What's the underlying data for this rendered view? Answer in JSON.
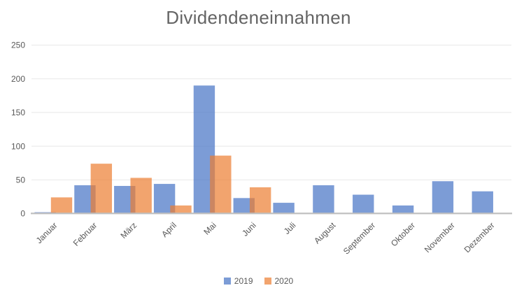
{
  "chart_data": {
    "type": "bar",
    "title": "Dividendeneinnahmen",
    "categories": [
      "Januar",
      "Februar",
      "März",
      "April",
      "Mai",
      "Juni",
      "Juli",
      "August",
      "September",
      "Oktober",
      "November",
      "Dezember"
    ],
    "series": [
      {
        "name": "2019",
        "color": "#4472C4",
        "opacity": 0.7,
        "values": [
          2,
          42,
          41,
          44,
          190,
          23,
          16,
          42,
          28,
          12,
          48,
          33
        ]
      },
      {
        "name": "2020",
        "color": "#ED7D31",
        "opacity": 0.7,
        "values": [
          24,
          74,
          53,
          12,
          86,
          39,
          0,
          0,
          0,
          0,
          0,
          0
        ]
      }
    ],
    "ylim": [
      0,
      250
    ],
    "yticks": [
      0,
      50,
      100,
      150,
      200,
      250
    ],
    "grid": true,
    "legend_position": "bottom",
    "bar_style": "overlapped",
    "x_label_rotation": -45,
    "xlabel": "",
    "ylabel": ""
  },
  "colors": {
    "background": "#FFFFFF",
    "title_text": "#646464",
    "axis_text": "#595959",
    "gridline": "#E8E8E8",
    "axis_line": "#BFBFBF"
  }
}
